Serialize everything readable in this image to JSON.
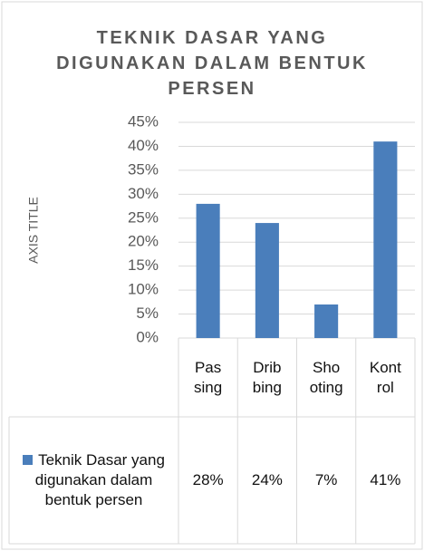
{
  "chart_data": {
    "type": "bar",
    "title": "TEKNIK DASAR YANG DIGUNAKAN DALAM BENTUK PERSEN",
    "y_axis_title": "AXIS TITLE",
    "categories": [
      "Passing",
      "Dribbing",
      "Shooting",
      "Kontrol"
    ],
    "series": [
      {
        "name": "Teknik Dasar yang digunakan dalam bentuk persen",
        "color": "#4a7ebb",
        "values": [
          28,
          24,
          7,
          41
        ],
        "value_labels": [
          "28%",
          "24%",
          "7%",
          "41%"
        ]
      }
    ],
    "ylim": [
      0,
      45
    ],
    "yticks": [
      {
        "value": 0,
        "label": "0%"
      },
      {
        "value": 5,
        "label": "5%"
      },
      {
        "value": 10,
        "label": "10%"
      },
      {
        "value": 15,
        "label": "15%"
      },
      {
        "value": 20,
        "label": "20%"
      },
      {
        "value": 25,
        "label": "25%"
      },
      {
        "value": 30,
        "label": "30%"
      },
      {
        "value": 35,
        "label": "35%"
      },
      {
        "value": 40,
        "label": "40%"
      },
      {
        "value": 45,
        "label": "45%"
      }
    ],
    "grid": true
  }
}
